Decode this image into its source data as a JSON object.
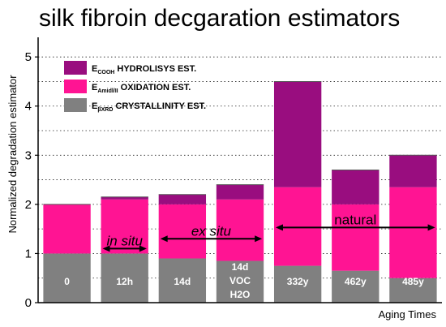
{
  "chart_data": {
    "type": "bar",
    "stacked": true,
    "title": "silk fibroin decgaration estimators",
    "ylabel": "Normalized degradation estimator",
    "xlabel": "Aging Times",
    "ylim": [
      0,
      5.3
    ],
    "yticks": [
      0,
      1,
      2,
      3,
      4,
      5
    ],
    "grid": "horizontal-dotted",
    "categories": [
      "0",
      "12h",
      "14d",
      "14d\nVOC\nH2O",
      "332y",
      "462y",
      "485y"
    ],
    "series": [
      {
        "name_main": "E",
        "name_sub": "βXRD",
        "name_rest": " CRYSTALLINITY EST.",
        "color": "#808080",
        "values": [
          1.0,
          1.0,
          0.9,
          0.85,
          0.75,
          0.65,
          0.5
        ]
      },
      {
        "name_main": "E",
        "name_sub": "Amidl/II",
        "name_rest": " OXIDATION EST.",
        "color": "#ff1493",
        "values": [
          1.0,
          1.1,
          1.1,
          1.25,
          1.6,
          1.35,
          1.85
        ]
      },
      {
        "name_main": "E",
        "name_sub": "COOH",
        "name_rest": " HYDROLISYS EST.",
        "color": "#990d7f",
        "values": [
          0.0,
          0.05,
          0.2,
          0.3,
          2.15,
          0.7,
          0.65
        ]
      }
    ],
    "annotations": [
      {
        "text": "in situ",
        "italic": true,
        "from": 1,
        "to": 1,
        "y": 1.1
      },
      {
        "text": "ex situ",
        "italic": true,
        "from": 2,
        "to": 3,
        "y": 1.3
      },
      {
        "text": "natural",
        "italic": false,
        "from": 4,
        "to": 6,
        "y": 1.53
      }
    ],
    "legend": "top-left"
  }
}
